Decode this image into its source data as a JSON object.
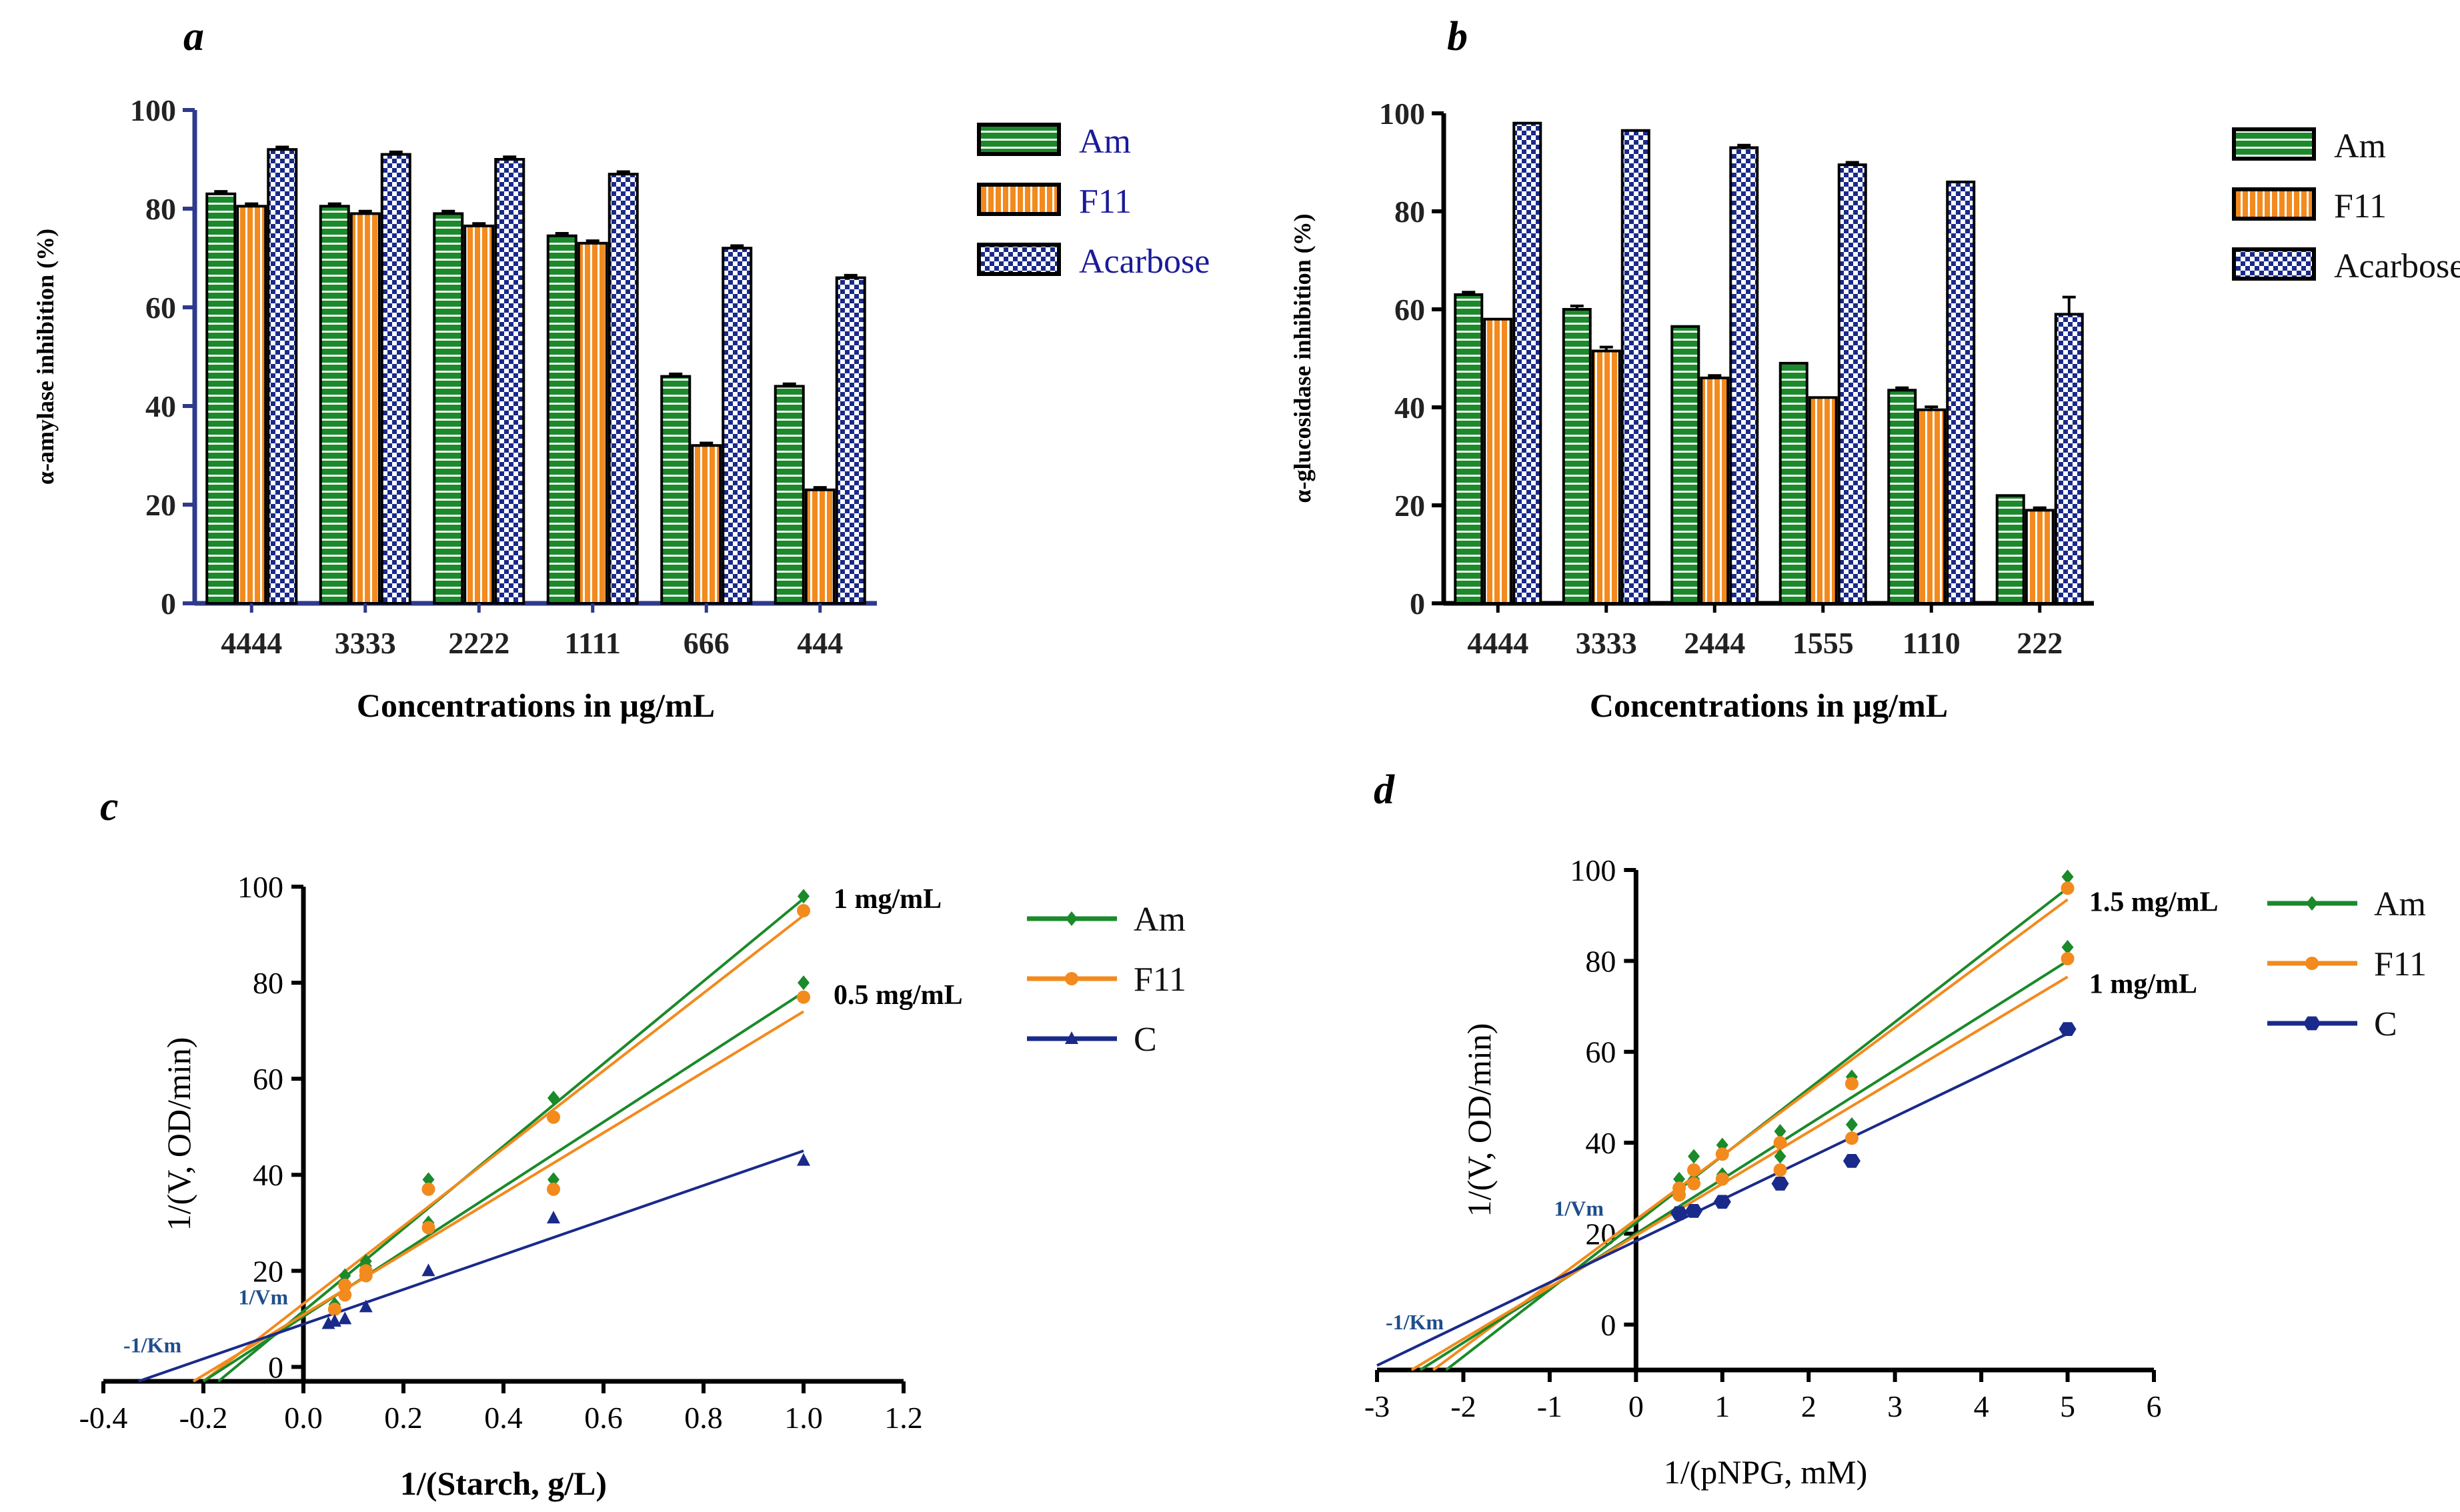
{
  "colors": {
    "Am": "#1a8a2a",
    "F11": "#f28a1e",
    "Acarbose": "#1a2a8a",
    "C": "#1a2a8a",
    "axisA": "#2e3a8c"
  },
  "chart_data": [
    {
      "panel": "a",
      "type": "bar",
      "categories": [
        "4444",
        "3333",
        "2222",
        "1111",
        "666",
        "444"
      ],
      "series": [
        {
          "name": "Am",
          "values": [
            83,
            80.5,
            79,
            74.5,
            46,
            44
          ]
        },
        {
          "name": "F11",
          "values": [
            80.5,
            79,
            76.5,
            73,
            32,
            23
          ]
        },
        {
          "name": "Acarbose",
          "values": [
            92,
            91,
            90,
            87,
            72,
            66
          ]
        }
      ],
      "errors": [
        [
          0.5,
          0.5,
          0.5,
          0.5,
          0.5,
          0.5
        ],
        [
          0.5,
          0.5,
          0.5,
          0.5,
          0.5,
          0.5
        ],
        [
          0.5,
          0.5,
          0.5,
          0.5,
          0.5,
          0.5
        ]
      ],
      "xlabel": "Concentrations in µg/mL",
      "ylabel": "α-amylase inhibition (%)",
      "ylim": [
        0,
        100
      ],
      "yticks": [
        "0",
        "20",
        "40",
        "60",
        "80",
        "100"
      ],
      "legend": "right"
    },
    {
      "panel": "b",
      "type": "bar",
      "categories": [
        "4444",
        "3333",
        "2444",
        "1555",
        "1110",
        "222"
      ],
      "series": [
        {
          "name": "Am",
          "values": [
            63,
            60,
            56.5,
            49,
            43.5,
            22
          ]
        },
        {
          "name": "F11",
          "values": [
            58,
            51.5,
            46,
            42,
            39.5,
            19
          ]
        },
        {
          "name": "Acarbose",
          "values": [
            98,
            96.5,
            93,
            89.5,
            86,
            59
          ]
        }
      ],
      "errors": [
        [
          0.5,
          0.7,
          0.4,
          0.4,
          0.5,
          0.4
        ],
        [
          0.4,
          0.8,
          0.5,
          0.4,
          0.6,
          0.5
        ],
        [
          0.3,
          0.4,
          0.5,
          0.5,
          0.4,
          3.5
        ]
      ],
      "xlabel": "Concentrations in µg/mL",
      "ylabel": "α-glucosidase inhibition (%)",
      "ylim": [
        0,
        100
      ],
      "yticks": [
        "0",
        "20",
        "40",
        "60",
        "80",
        "100"
      ],
      "legend": "right"
    },
    {
      "panel": "c",
      "type": "scatter",
      "xlabel": "1/(Starch, g/L)",
      "ylabel": "1/(V, OD/min)",
      "xlim": [
        -0.4,
        1.2
      ],
      "ylim": [
        -3,
        100
      ],
      "xticks": [
        "-0.4",
        "-0.2",
        "0.0",
        "0.2",
        "0.4",
        "0.6",
        "0.8",
        "1.0",
        "1.2"
      ],
      "yticks": [
        "0",
        "20",
        "40",
        "60",
        "80",
        "100"
      ],
      "series": [
        {
          "name": "Am",
          "marker": "diamond",
          "x": [
            0.0625,
            0.083,
            0.125,
            0.25,
            0.5,
            1.0,
            0.0625,
            0.083,
            0.125,
            0.25,
            0.5,
            1.0
          ],
          "y": [
            13,
            19,
            22,
            39,
            56,
            98,
            13,
            17,
            21,
            30,
            39,
            80
          ]
        },
        {
          "name": "F11",
          "marker": "circle",
          "x": [
            0.0625,
            0.083,
            0.125,
            0.25,
            0.5,
            1.0,
            0.0625,
            0.083,
            0.125,
            0.25,
            0.5,
            1.0
          ],
          "y": [
            12,
            17,
            20,
            37,
            52,
            95,
            12,
            15,
            19,
            29,
            37,
            77
          ]
        },
        {
          "name": "C",
          "marker": "triangle",
          "x": [
            0.05,
            0.0625,
            0.083,
            0.125,
            0.25,
            0.5,
            1.0
          ],
          "y": [
            9,
            9.5,
            10,
            12.5,
            20,
            31,
            43
          ]
        }
      ],
      "lines": [
        {
          "series": "Am",
          "x": [
            -0.17,
            1.0
          ],
          "y": [
            -3,
            97.5
          ]
        },
        {
          "series": "F11",
          "x": [
            -0.2,
            1.0
          ],
          "y": [
            -3,
            94
          ]
        },
        {
          "series": "Am",
          "x": [
            -0.2,
            1.0
          ],
          "y": [
            -3,
            78
          ]
        },
        {
          "series": "F11",
          "x": [
            -0.22,
            1.0
          ],
          "y": [
            -3,
            74
          ]
        },
        {
          "series": "C",
          "x": [
            -0.33,
            1.0
          ],
          "y": [
            -3,
            45
          ]
        }
      ],
      "annotations": [
        {
          "text": "1 mg/mL",
          "x": 1.06,
          "y": 97.5
        },
        {
          "text": "0.5 mg/mL",
          "x": 1.06,
          "y": 77.5
        },
        {
          "text": "1/Vm",
          "x": -0.13,
          "y": 15
        },
        {
          "text": "-1/Km",
          "x": -0.36,
          "y": 5
        }
      ],
      "legend": "right"
    },
    {
      "panel": "d",
      "type": "scatter",
      "xlabel": "1/(pNPG, mM)",
      "ylabel": "1/(V, OD/min)",
      "xlim": [
        -3,
        6
      ],
      "ylim": [
        -10,
        100
      ],
      "xticks": [
        "-3",
        "-2",
        "-1",
        "0",
        "1",
        "2",
        "3",
        "4",
        "5",
        "6"
      ],
      "yticks": [
        "0",
        "20",
        "40",
        "60",
        "80",
        "100"
      ],
      "series": [
        {
          "name": "Am",
          "marker": "diamond",
          "x": [
            0.5,
            0.67,
            1.0,
            1.67,
            2.5,
            5.0,
            0.5,
            0.67,
            1.0,
            1.67,
            2.5,
            5.0
          ],
          "y": [
            32,
            37,
            39.5,
            42.5,
            54.5,
            98.5,
            30,
            32,
            33,
            37,
            44,
            83
          ]
        },
        {
          "name": "F11",
          "marker": "circle",
          "x": [
            0.5,
            0.67,
            1.0,
            1.67,
            2.5,
            5.0,
            0.5,
            0.67,
            1.0,
            1.67,
            2.5,
            5.0
          ],
          "y": [
            30,
            34,
            37.5,
            40,
            53,
            96,
            28.5,
            31,
            32,
            34,
            41,
            80.5
          ]
        },
        {
          "name": "C",
          "marker": "hexagon",
          "x": [
            0.5,
            0.67,
            1.0,
            1.67,
            2.5,
            5.0
          ],
          "y": [
            24.5,
            25,
            27,
            31,
            36,
            65
          ]
        }
      ],
      "lines": [
        {
          "series": "Am",
          "x": [
            -2.2,
            5.0
          ],
          "y": [
            -10,
            96
          ]
        },
        {
          "series": "F11",
          "x": [
            -2.35,
            5.0
          ],
          "y": [
            -10,
            93.5
          ]
        },
        {
          "series": "Am",
          "x": [
            -2.5,
            5.0
          ],
          "y": [
            -10,
            80
          ]
        },
        {
          "series": "F11",
          "x": [
            -2.6,
            5.0
          ],
          "y": [
            -10,
            76.5
          ]
        },
        {
          "series": "C",
          "x": [
            -3.0,
            5.0
          ],
          "y": [
            -9,
            64
          ]
        }
      ],
      "annotations": [
        {
          "text": "1.5 mg/mL",
          "x": 5.25,
          "y": 93
        },
        {
          "text": "1 mg/mL",
          "x": 5.25,
          "y": 75
        },
        {
          "text": "1/Vm",
          "x": -0.95,
          "y": 26
        },
        {
          "text": "-1/Km",
          "x": -2.9,
          "y": 1
        }
      ],
      "legend": "right"
    }
  ]
}
